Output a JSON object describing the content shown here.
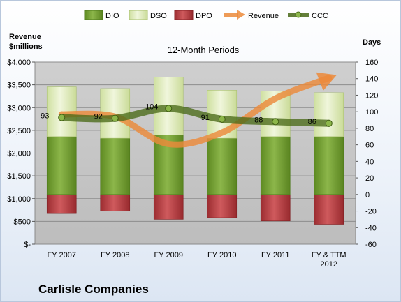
{
  "chart_data": {
    "type": "bar",
    "title": "12-Month Periods",
    "company": "Carlisle Companies",
    "ylabel_left": [
      "Revenue",
      "$millions"
    ],
    "ylabel_right": "Days",
    "left_ticks": [
      "$-",
      "$500",
      "$1,000",
      "$1,500",
      "$2,000",
      "$2,500",
      "$3,000",
      "$3,500",
      "$4,000"
    ],
    "right_ticks": [
      "-60",
      "-40",
      "-20",
      "0",
      "20",
      "40",
      "60",
      "80",
      "100",
      "120",
      "140",
      "160"
    ],
    "ylim_left": [
      0,
      4000
    ],
    "ylim_right": [
      -60,
      160
    ],
    "categories": [
      [
        "FY 2007"
      ],
      [
        "FY 2008"
      ],
      [
        "FY 2009"
      ],
      [
        "FY 2010"
      ],
      [
        "FY 2011"
      ],
      [
        "FY & TTM",
        "2012"
      ]
    ],
    "legend": [
      "DIO",
      "DSO",
      "DPO",
      "Revenue",
      "CCC"
    ],
    "series": [
      {
        "name": "DIO",
        "axis": "right",
        "color": "#6f9a2c",
        "values": [
          70,
          68,
          72,
          68,
          70,
          70
        ]
      },
      {
        "name": "DSO",
        "axis": "right",
        "color": "#dbe8b2",
        "values": [
          60,
          60,
          70,
          58,
          55,
          53
        ]
      },
      {
        "name": "DPO",
        "axis": "right",
        "color": "#b5383c",
        "values": [
          -23,
          -20,
          -30,
          -28,
          -32,
          -36
        ]
      },
      {
        "name": "Revenue",
        "axis": "left",
        "color": "#ec8a3a",
        "values": [
          2850,
          2800,
          2200,
          2450,
          3200,
          3650
        ]
      },
      {
        "name": "CCC",
        "axis": "right",
        "color": "#4a6a18",
        "values": [
          93,
          92,
          104,
          91,
          88,
          86
        ]
      }
    ],
    "ccc_labels": [
      "93",
      "92",
      "104",
      "91",
      "88",
      "86"
    ],
    "grid": true,
    "legend_position": "top"
  }
}
